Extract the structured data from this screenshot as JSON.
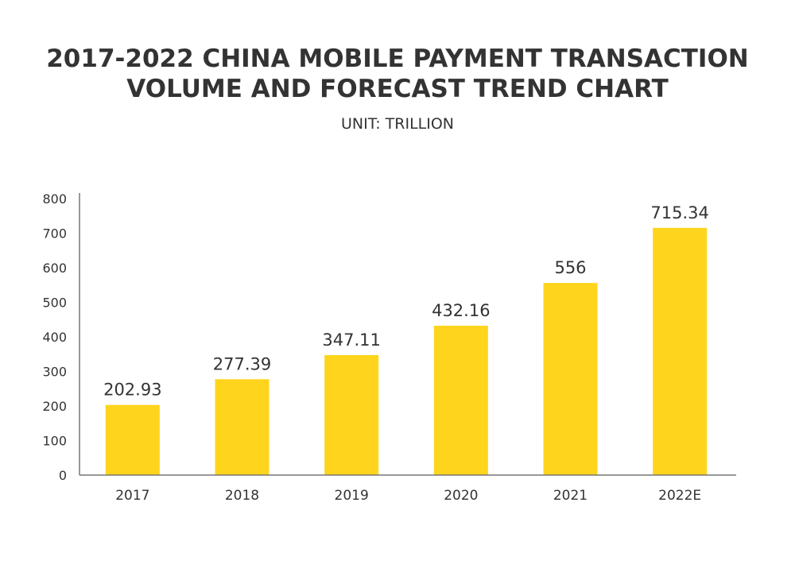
{
  "chart_data": {
    "type": "bar",
    "title_lines": [
      "2017-2022 CHINA MOBILE PAYMENT TRANSACTION",
      "VOLUME AND FORECAST TREND CHART"
    ],
    "subtitle": "UNIT: TRILLION",
    "categories": [
      "2017",
      "2018",
      "2019",
      "2020",
      "2021",
      "2022E"
    ],
    "values": [
      202.93,
      277.39,
      347.11,
      432.16,
      556,
      715.34
    ],
    "data_labels": [
      "202.93",
      "277.39",
      "347.11",
      "432.16",
      "556",
      "715.34"
    ],
    "yticks": [
      "0",
      "100",
      "200",
      "300",
      "400",
      "500",
      "600",
      "700",
      "800"
    ],
    "ylim": [
      0,
      800
    ],
    "xlabel": "",
    "ylabel": "",
    "grid": false,
    "legend": "none",
    "colors": {
      "bar": "#FFD41C",
      "axis": "#777777",
      "text": "#333333"
    }
  }
}
